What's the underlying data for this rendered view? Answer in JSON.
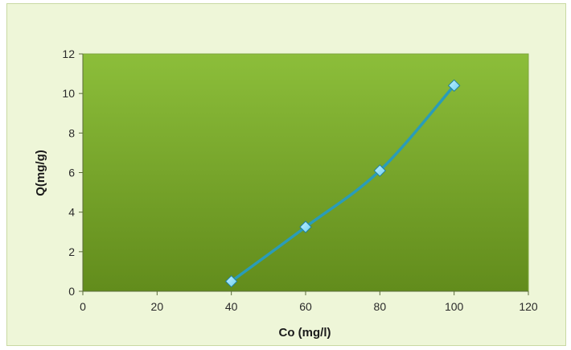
{
  "chart_data": {
    "type": "line",
    "title": "",
    "xlabel": "Co (mg/l)",
    "ylabel": "Q(mg/g)",
    "xlim": [
      0,
      120
    ],
    "ylim": [
      0,
      12
    ],
    "x_ticks": [
      0,
      20,
      40,
      60,
      80,
      100,
      120
    ],
    "y_ticks": [
      0,
      2,
      4,
      6,
      8,
      10,
      12
    ],
    "grid": false,
    "legend": "none",
    "smoothed": true,
    "marker": "diamond",
    "series": [
      {
        "x": [
          40,
          60,
          80,
          100
        ],
        "values": [
          0.5,
          3.25,
          6.1,
          10.4
        ]
      }
    ],
    "colors": {
      "plot_top": "#8cbe3a",
      "plot_bottom": "#628c1c",
      "line": "#2a9cb8",
      "marker": "#6fd0f2",
      "marker_edge": "#1f7fa0"
    }
  }
}
